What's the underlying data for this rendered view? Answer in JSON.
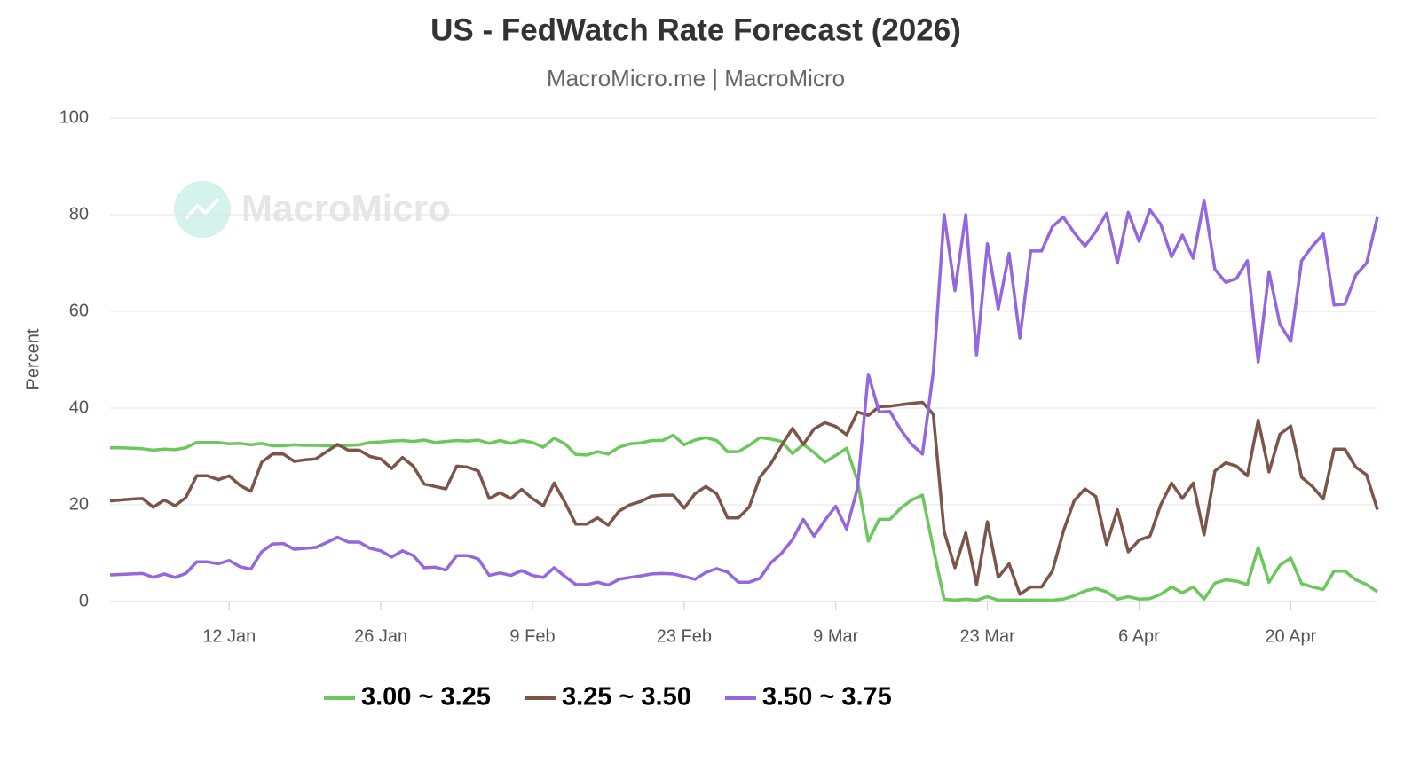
{
  "chart_data": {
    "type": "line",
    "title": "US - FedWatch Rate Forecast (2026)",
    "subtitle": "MacroMicro.me | MacroMicro",
    "watermark": "MacroMicro",
    "y_label": "Percent",
    "x": [
      "1 Jan",
      "2 Jan",
      "3 Jan",
      "4 Jan",
      "5 Jan",
      "6 Jan",
      "7 Jan",
      "8 Jan",
      "9 Jan",
      "10 Jan",
      "11 Jan",
      "12 Jan",
      "13 Jan",
      "14 Jan",
      "15 Jan",
      "16 Jan",
      "17 Jan",
      "18 Jan",
      "19 Jan",
      "20 Jan",
      "21 Jan",
      "22 Jan",
      "23 Jan",
      "24 Jan",
      "25 Jan",
      "26 Jan",
      "27 Jan",
      "28 Jan",
      "29 Jan",
      "30 Jan",
      "31 Jan",
      "1 Feb",
      "2 Feb",
      "3 Feb",
      "4 Feb",
      "5 Feb",
      "6 Feb",
      "7 Feb",
      "8 Feb",
      "9 Feb",
      "10 Feb",
      "11 Feb",
      "12 Feb",
      "13 Feb",
      "14 Feb",
      "15 Feb",
      "16 Feb",
      "17 Feb",
      "18 Feb",
      "19 Feb",
      "20 Feb",
      "21 Feb",
      "22 Feb",
      "23 Feb",
      "24 Feb",
      "25 Feb",
      "26 Feb",
      "27 Feb",
      "28 Feb",
      "1 Mar",
      "2 Mar",
      "3 Mar",
      "4 Mar",
      "5 Mar",
      "6 Mar",
      "7 Mar",
      "8 Mar",
      "9 Mar",
      "10 Mar",
      "11 Mar",
      "12 Mar",
      "13 Mar",
      "14 Mar",
      "15 Mar",
      "16 Mar",
      "17 Mar",
      "18 Mar",
      "19 Mar",
      "20 Mar",
      "21 Mar",
      "22 Mar",
      "23 Mar",
      "24 Mar",
      "25 Mar",
      "26 Mar",
      "27 Mar",
      "28 Mar",
      "29 Mar",
      "30 Mar",
      "31 Mar",
      "1 Apr",
      "2 Apr",
      "3 Apr",
      "4 Apr",
      "5 Apr",
      "6 Apr",
      "7 Apr",
      "8 Apr",
      "9 Apr",
      "10 Apr",
      "11 Apr",
      "12 Apr",
      "13 Apr",
      "14 Apr",
      "15 Apr",
      "16 Apr",
      "17 Apr",
      "18 Apr",
      "19 Apr",
      "20 Apr",
      "21 Apr",
      "22 Apr",
      "23 Apr",
      "24 Apr",
      "25 Apr",
      "26 Apr",
      "27 Apr",
      "28 Apr"
    ],
    "xticks": [
      "12 Jan",
      "26 Jan",
      "9 Feb",
      "23 Feb",
      "9 Mar",
      "23 Mar",
      "6 Apr",
      "20 Apr"
    ],
    "ylim": [
      0,
      100
    ],
    "yticks": [
      0,
      20,
      40,
      60,
      80,
      100
    ],
    "grid": true,
    "legend": "bottom",
    "series": [
      {
        "name": "3.00 ~ 3.25",
        "color": "#6cc75c",
        "values": [
          31.8,
          31.8,
          31.7,
          31.6,
          31.3,
          31.5,
          31.4,
          31.8,
          32.9,
          32.9,
          32.9,
          32.6,
          32.7,
          32.4,
          32.7,
          32.2,
          32.2,
          32.4,
          32.3,
          32.3,
          32.2,
          32.2,
          32.3,
          32.4,
          32.9,
          33.0,
          33.2,
          33.3,
          33.1,
          33.4,
          32.9,
          33.1,
          33.3,
          33.2,
          33.4,
          32.7,
          33.3,
          32.7,
          33.3,
          32.9,
          31.9,
          33.8,
          32.6,
          30.4,
          30.3,
          31.0,
          30.5,
          31.9,
          32.6,
          32.8,
          33.3,
          33.3,
          34.4,
          32.4,
          33.4,
          33.9,
          33.3,
          31.0,
          31.0,
          32.3,
          33.9,
          33.6,
          33.1,
          30.6,
          32.5,
          30.8,
          28.8,
          30.2,
          31.7,
          25.0,
          12.5,
          17.0,
          17.0,
          19.3,
          21.0,
          22.0,
          11.0,
          0.5,
          0.3,
          0.5,
          0.3,
          1.0,
          0.3,
          0.3,
          0.3,
          0.3,
          0.3,
          0.3,
          0.5,
          1.2,
          2.2,
          2.7,
          2.0,
          0.5,
          1.0,
          0.5,
          0.6,
          1.5,
          3.0,
          1.8,
          3.0,
          0.5,
          3.8,
          4.5,
          4.2,
          3.5,
          11.2,
          4.0,
          7.5,
          9.0,
          3.7,
          3.0,
          2.5,
          6.3,
          6.3,
          4.5,
          3.5,
          2.0
        ]
      },
      {
        "name": "3.25 ~ 3.50",
        "color": "#7b5549",
        "values": [
          20.8,
          21.0,
          21.2,
          21.3,
          19.5,
          21.0,
          19.8,
          21.5,
          26.0,
          26.0,
          25.2,
          26.0,
          24.0,
          22.8,
          28.8,
          30.5,
          30.5,
          29.0,
          29.3,
          29.5,
          31.0,
          32.5,
          31.3,
          31.3,
          30.0,
          29.5,
          27.5,
          29.8,
          28.0,
          24.3,
          23.8,
          23.3,
          28.0,
          27.8,
          27.0,
          21.3,
          22.5,
          21.3,
          23.2,
          21.3,
          19.8,
          24.5,
          20.5,
          16.0,
          16.0,
          17.3,
          15.8,
          18.7,
          20.0,
          20.7,
          21.8,
          22.0,
          22.0,
          19.3,
          22.3,
          23.8,
          22.3,
          17.3,
          17.3,
          19.5,
          25.7,
          28.5,
          32.3,
          35.8,
          32.5,
          35.7,
          37.0,
          36.2,
          34.5,
          39.2,
          38.5,
          40.3,
          40.4,
          40.7,
          41.0,
          41.2,
          38.7,
          14.5,
          7.0,
          14.2,
          3.5,
          16.5,
          5.0,
          7.8,
          1.5,
          3.0,
          3.0,
          6.3,
          14.5,
          20.8,
          23.3,
          21.7,
          11.8,
          19.0,
          10.3,
          12.7,
          13.5,
          20.0,
          24.5,
          21.3,
          24.5,
          13.8,
          27.0,
          28.7,
          28.0,
          26.0,
          37.5,
          26.8,
          34.6,
          36.3,
          25.7,
          23.8,
          21.2,
          31.5,
          31.5,
          27.8,
          26.2,
          19.0
        ]
      },
      {
        "name": "3.50 ~ 3.75",
        "color": "#9467dd",
        "values": [
          5.5,
          5.6,
          5.7,
          5.8,
          5.0,
          5.7,
          5.0,
          5.8,
          8.2,
          8.2,
          7.8,
          8.5,
          7.2,
          6.7,
          10.3,
          11.9,
          12.0,
          10.8,
          11.0,
          11.2,
          12.2,
          13.3,
          12.3,
          12.3,
          11.0,
          10.5,
          9.2,
          10.5,
          9.5,
          7.0,
          7.1,
          6.5,
          9.5,
          9.5,
          8.8,
          5.4,
          5.9,
          5.4,
          6.4,
          5.4,
          5.0,
          7.0,
          5.2,
          3.5,
          3.5,
          4.0,
          3.4,
          4.6,
          5.0,
          5.3,
          5.7,
          5.8,
          5.7,
          5.2,
          4.6,
          6.0,
          6.8,
          6.1,
          4.0,
          4.0,
          4.8,
          8.0,
          10.0,
          12.8,
          17.0,
          13.5,
          16.8,
          19.7,
          15.0,
          23.5,
          47.0,
          39.2,
          39.3,
          35.5,
          32.5,
          30.5,
          47.5,
          80.0,
          64.3,
          80.0,
          51.0,
          74.0,
          60.5,
          72.0,
          54.5,
          72.5,
          72.5,
          77.5,
          79.5,
          76.3,
          73.5,
          76.5,
          80.3,
          70.0,
          80.5,
          74.5,
          81.0,
          78.0,
          71.3,
          75.8,
          71.0,
          83.0,
          68.7,
          66.0,
          66.8,
          70.5,
          49.5,
          68.2,
          57.3,
          53.8,
          70.5,
          73.5,
          76.0,
          61.3,
          61.5,
          67.5,
          70.0,
          79.5
        ]
      }
    ]
  }
}
